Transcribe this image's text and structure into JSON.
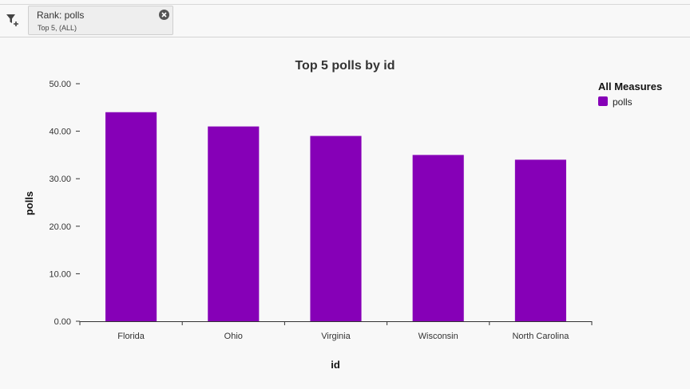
{
  "filter": {
    "title": "Rank: polls",
    "subtitle": "Top 5, (ALL)"
  },
  "colors": {
    "bar": "#8600b7",
    "axis": "#333333"
  },
  "chart_data": {
    "type": "bar",
    "title": "Top 5 polls by id",
    "xlabel": "id",
    "ylabel": "polls",
    "categories": [
      "Florida",
      "Ohio",
      "Virginia",
      "Wisconsin",
      "North Carolina"
    ],
    "series": [
      {
        "name": "polls",
        "values": [
          44,
          41,
          39,
          35,
          34
        ]
      }
    ],
    "ylim": [
      0,
      50
    ],
    "yticks": [
      "0.00",
      "10.00",
      "20.00",
      "30.00",
      "40.00",
      "50.00"
    ],
    "legend": {
      "title": "All Measures",
      "position": "top-right"
    },
    "grid": false
  }
}
